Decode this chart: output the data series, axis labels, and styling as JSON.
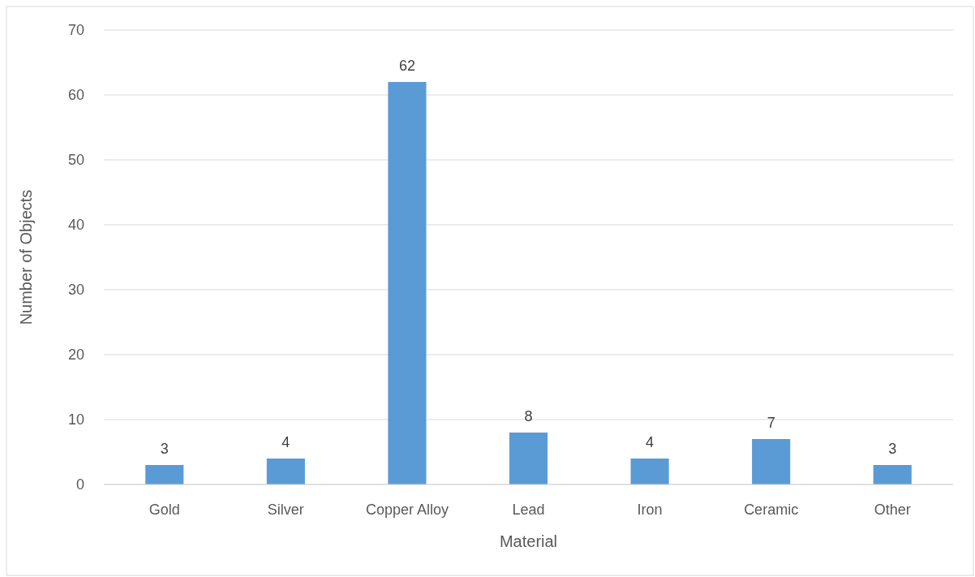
{
  "chart_data": {
    "type": "bar",
    "xlabel": "Material",
    "ylabel": "Number of Objects",
    "categories": [
      "Gold",
      "Silver",
      "Copper Alloy",
      "Lead",
      "Iron",
      "Ceramic",
      "Other"
    ],
    "values": [
      3,
      4,
      62,
      8,
      4,
      7,
      3
    ],
    "color": "#5b9bd5",
    "ylim": [
      0,
      70
    ],
    "yticks": [
      0,
      10,
      20,
      30,
      40,
      50,
      60,
      70
    ],
    "grid": "y",
    "data_labels": true
  }
}
